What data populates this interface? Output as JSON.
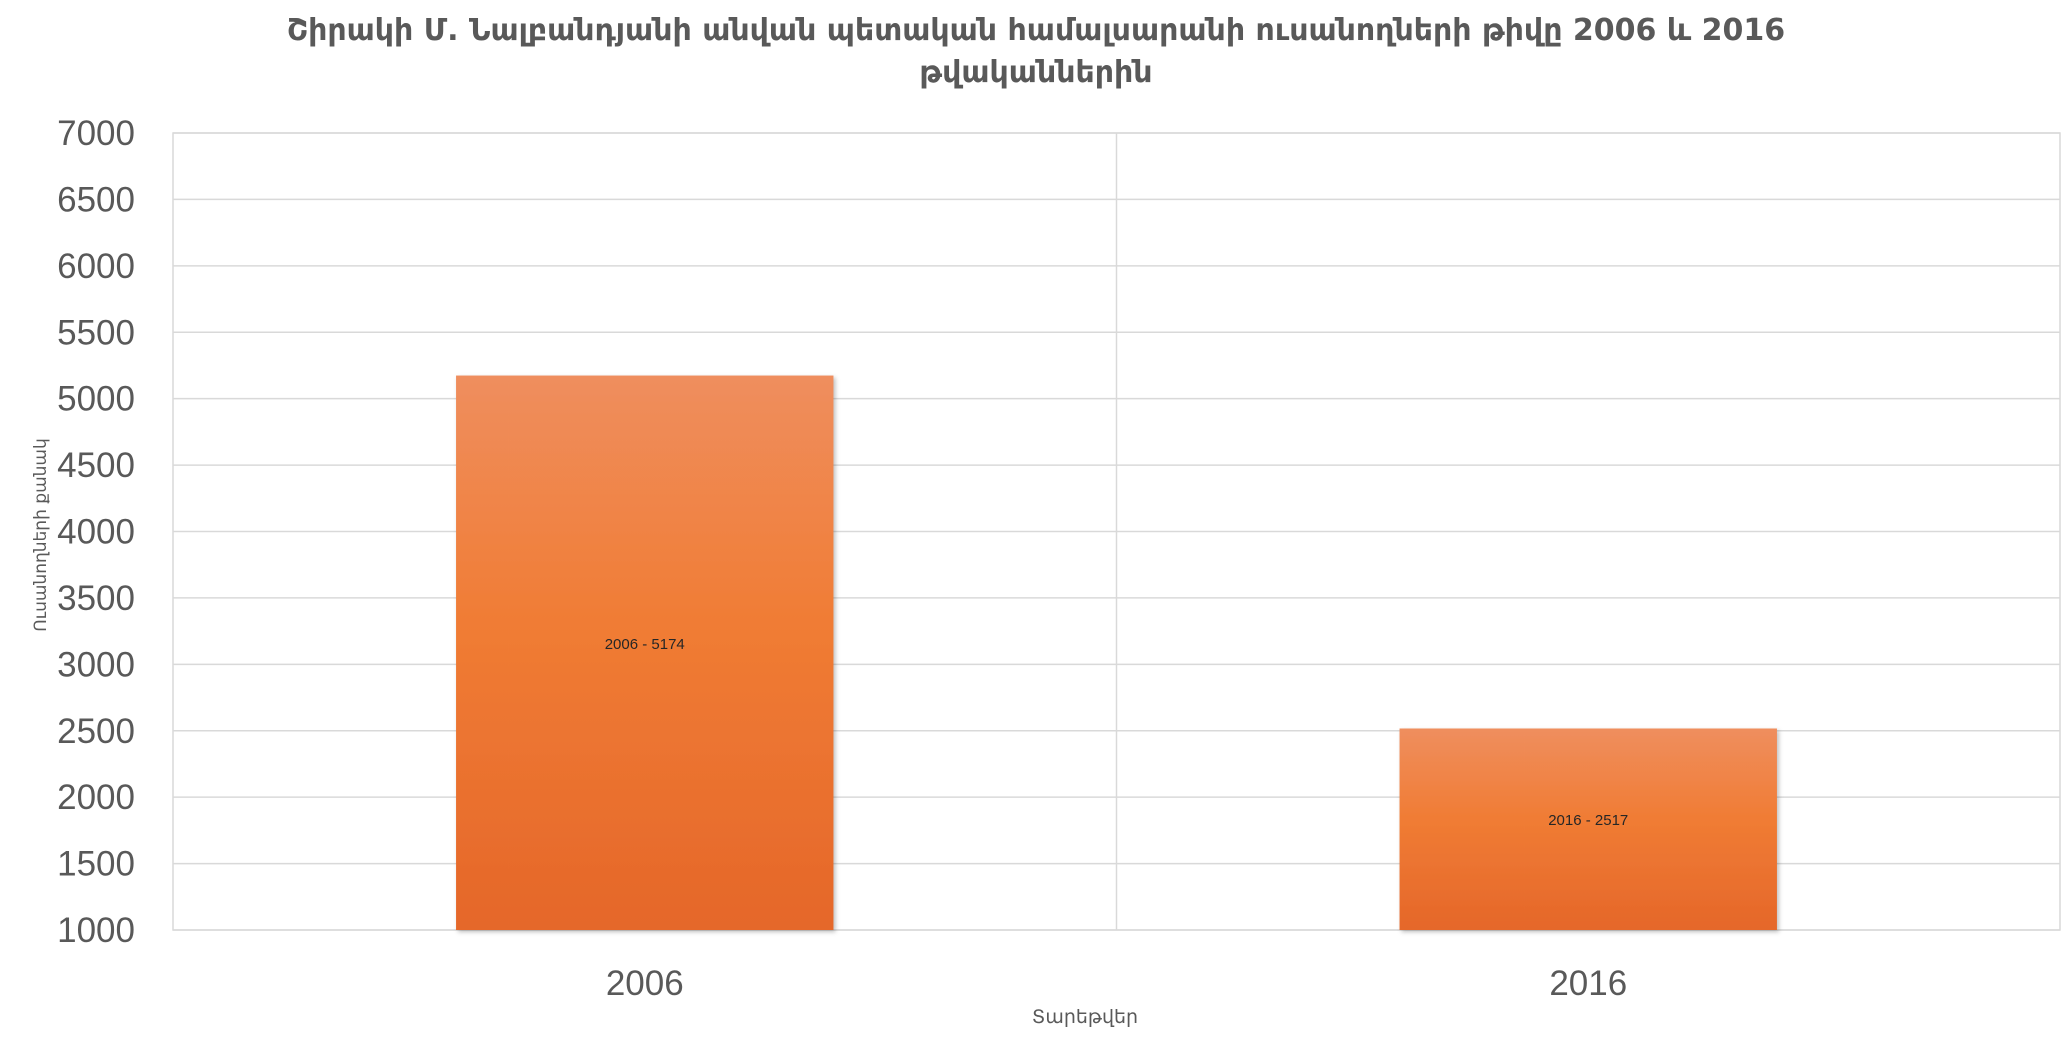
{
  "chart_data": {
    "type": "bar",
    "title_lines": [
      "Շիրակի  Մ. Նալբանդյանի անվան պետական համալսարանի ուսանողների թիվը 2006 և 2016",
      "թվականներին"
    ],
    "xlabel": "Տարեթվեր",
    "ylabel": "Ուսանողների քանակ",
    "categories": [
      "2006",
      "2016"
    ],
    "series": [
      {
        "values": [
          5174,
          2517
        ]
      }
    ],
    "data_labels": [
      "2006 - 5174",
      "2016 - 2517"
    ],
    "ylim": [
      1000,
      7000
    ],
    "yticks": [
      1000,
      1500,
      2000,
      2500,
      3000,
      3500,
      4000,
      4500,
      5000,
      5500,
      6000,
      6500,
      7000
    ],
    "grid": true,
    "legend": "none",
    "colors": {
      "bar_top": "#ef8e5e",
      "bar_mid": "#f07c34",
      "bar_bottom": "#e5672a",
      "grid": "#d9d9d9",
      "text": "#595959"
    }
  }
}
